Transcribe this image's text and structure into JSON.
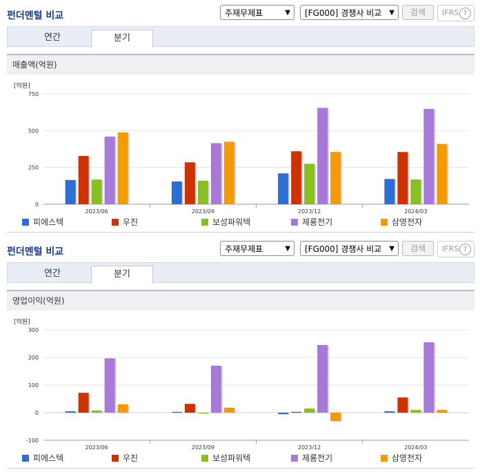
{
  "header": {
    "title": "펀더멘털 비교",
    "select1": "주재무제표",
    "select2": "[FG000] 경쟁사 비교",
    "search_label": "검색",
    "ifrs_label": "IFRS",
    "help_label": "?"
  },
  "tabs": [
    {
      "label": "연간"
    },
    {
      "label": "분기"
    }
  ],
  "colors": {
    "series": [
      "#2b6fd6",
      "#cc3300",
      "#88c020",
      "#a87ad8",
      "#f59a00"
    ]
  },
  "chart_data": [
    {
      "type": "bar",
      "title": "매출액(억원)",
      "unit_label": "[억원]",
      "categories": [
        "2023/06",
        "2023/09",
        "2023/12",
        "2024/03"
      ],
      "ylim": [
        0,
        750
      ],
      "yticks": [
        "750",
        "500",
        "250",
        "0"
      ],
      "ytick_values": [
        750,
        500,
        250,
        0
      ],
      "series": [
        {
          "name": "피에스텍",
          "values": [
            165,
            155,
            210,
            172
          ]
        },
        {
          "name": "우진",
          "values": [
            328,
            285,
            360,
            355
          ]
        },
        {
          "name": "보성파워텍",
          "values": [
            168,
            160,
            275,
            168
          ]
        },
        {
          "name": "제룡전기",
          "values": [
            460,
            415,
            655,
            648
          ]
        },
        {
          "name": "삼영전자",
          "values": [
            488,
            425,
            355,
            410
          ]
        }
      ]
    },
    {
      "type": "bar",
      "title": "영업이익(억원)",
      "unit_label": "[억원]",
      "categories": [
        "2023/06",
        "2023/09",
        "2023/12",
        "2024/03"
      ],
      "ylim": [
        -100,
        300
      ],
      "yticks": [
        "300",
        "200",
        "100",
        "0",
        "-100"
      ],
      "ytick_values": [
        300,
        200,
        100,
        0,
        -100
      ],
      "series": [
        {
          "name": "피에스텍",
          "values": [
            5,
            3,
            -5,
            5
          ]
        },
        {
          "name": "우진",
          "values": [
            72,
            32,
            3,
            55
          ]
        },
        {
          "name": "보성파워텍",
          "values": [
            8,
            0,
            15,
            10
          ]
        },
        {
          "name": "제룡전기",
          "values": [
            197,
            170,
            245,
            255
          ]
        },
        {
          "name": "삼영전자",
          "values": [
            30,
            18,
            -30,
            10
          ]
        }
      ]
    }
  ]
}
